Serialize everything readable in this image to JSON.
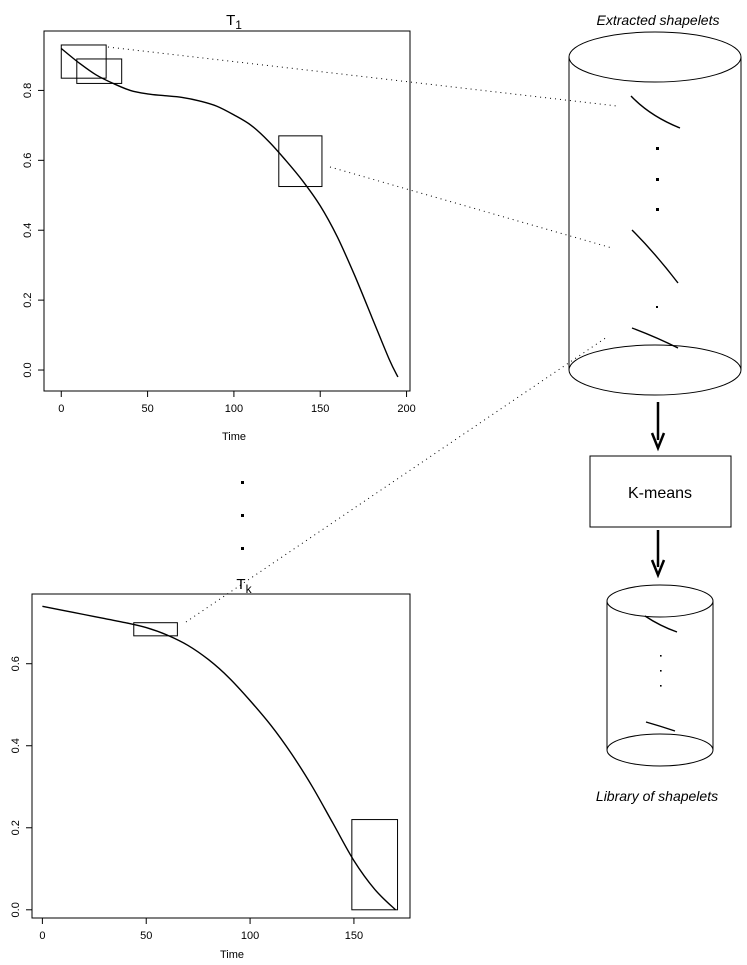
{
  "plots": [
    {
      "id": "t1",
      "title_main": "T",
      "title_sub": "1",
      "xlabel": "Time",
      "xrange": [
        -10,
        202
      ],
      "yrange": [
        -0.06,
        0.97
      ],
      "xticks": [
        "0",
        "50",
        "100",
        "150",
        "200"
      ],
      "xtick_values": [
        0,
        50,
        100,
        150,
        200
      ],
      "yticks": [
        "0.0",
        "0.2",
        "0.4",
        "0.6",
        "0.8"
      ],
      "ytick_values": [
        0,
        0.2,
        0.4,
        0.6,
        0.8
      ],
      "curve": [
        [
          0,
          0.92
        ],
        [
          10,
          0.88
        ],
        [
          20,
          0.845
        ],
        [
          30,
          0.82
        ],
        [
          40,
          0.8
        ],
        [
          50,
          0.79
        ],
        [
          60,
          0.785
        ],
        [
          70,
          0.78
        ],
        [
          80,
          0.77
        ],
        [
          90,
          0.755
        ],
        [
          100,
          0.73
        ],
        [
          110,
          0.7
        ],
        [
          120,
          0.655
        ],
        [
          130,
          0.6
        ],
        [
          140,
          0.54
        ],
        [
          150,
          0.47
        ],
        [
          160,
          0.38
        ],
        [
          170,
          0.27
        ],
        [
          180,
          0.15
        ],
        [
          190,
          0.03
        ],
        [
          195,
          -0.02
        ]
      ],
      "windows": [
        [
          0,
          26,
          0.835,
          0.93
        ],
        [
          9,
          35,
          0.82,
          0.89
        ],
        [
          126,
          151,
          0.525,
          0.67
        ]
      ]
    },
    {
      "id": "tk",
      "title_main": "T",
      "title_sub": "k",
      "xlabel": "Time",
      "xrange": [
        -5,
        177
      ],
      "yrange": [
        -0.02,
        0.77
      ],
      "xticks": [
        "0",
        "50",
        "100",
        "150"
      ],
      "xtick_values": [
        0,
        50,
        100,
        150
      ],
      "yticks": [
        "0.0",
        "0.2",
        "0.4",
        "0.6"
      ],
      "ytick_values": [
        0,
        0.2,
        0.4,
        0.6
      ],
      "curve": [
        [
          0,
          0.74
        ],
        [
          10,
          0.73
        ],
        [
          20,
          0.72
        ],
        [
          30,
          0.71
        ],
        [
          40,
          0.7
        ],
        [
          50,
          0.688
        ],
        [
          60,
          0.67
        ],
        [
          70,
          0.645
        ],
        [
          80,
          0.61
        ],
        [
          90,
          0.565
        ],
        [
          100,
          0.51
        ],
        [
          110,
          0.45
        ],
        [
          120,
          0.38
        ],
        [
          130,
          0.3
        ],
        [
          140,
          0.21
        ],
        [
          150,
          0.12
        ],
        [
          160,
          0.05
        ],
        [
          170,
          0.0
        ]
      ],
      "windows": [
        [
          44,
          65,
          0.668,
          0.7
        ],
        [
          149,
          171,
          0.0,
          0.22
        ]
      ]
    }
  ],
  "extracted_label": "Extracted shapelets",
  "kmeans_label": "K-means",
  "library_label": "Library of shapelets"
}
